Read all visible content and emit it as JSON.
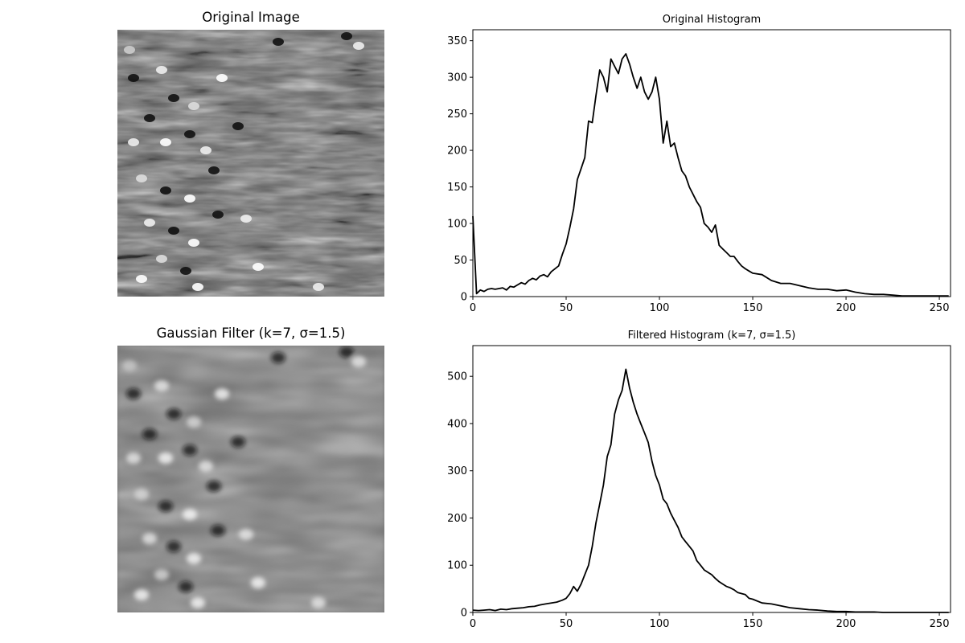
{
  "panels": {
    "original_image": {
      "title": "Original Image"
    },
    "filtered_image": {
      "title": "Gaussian Filter (k=7, σ=1.5)"
    }
  },
  "chart_data": [
    {
      "type": "line",
      "title": "Original Histogram",
      "xlabel": "",
      "ylabel": "",
      "xlim": [
        0,
        256
      ],
      "ylim": [
        0,
        365
      ],
      "xticks": [
        0,
        50,
        100,
        150,
        200,
        250
      ],
      "yticks": [
        0,
        50,
        100,
        150,
        200,
        250,
        300,
        350
      ],
      "grid": false,
      "line_color": "#000000",
      "series": [
        {
          "x": [
            0,
            2,
            4,
            6,
            8,
            10,
            12,
            14,
            16,
            18,
            20,
            22,
            24,
            26,
            28,
            30,
            32,
            34,
            36,
            38,
            40,
            42,
            44,
            46,
            48,
            50,
            52,
            54,
            56,
            58,
            60,
            62,
            64,
            66,
            68,
            70,
            72,
            74,
            76,
            78,
            80,
            82,
            84,
            86,
            88,
            90,
            92,
            94,
            96,
            98,
            100,
            102,
            104,
            106,
            108,
            110,
            112,
            114,
            116,
            118,
            120,
            122,
            124,
            126,
            128,
            130,
            132,
            134,
            136,
            138,
            140,
            142,
            144,
            146,
            148,
            150,
            155,
            160,
            165,
            170,
            175,
            180,
            185,
            190,
            195,
            200,
            205,
            210,
            215,
            220,
            225,
            230,
            235,
            240,
            245,
            250,
            255
          ],
          "values": [
            110,
            4,
            9,
            7,
            10,
            11,
            10,
            11,
            12,
            9,
            14,
            13,
            16,
            19,
            17,
            22,
            25,
            23,
            28,
            30,
            27,
            34,
            38,
            42,
            58,
            72,
            95,
            120,
            160,
            175,
            190,
            240,
            238,
            275,
            310,
            300,
            280,
            325,
            315,
            305,
            325,
            332,
            318,
            300,
            285,
            300,
            280,
            270,
            280,
            300,
            270,
            210,
            240,
            205,
            210,
            190,
            172,
            165,
            150,
            140,
            130,
            122,
            100,
            95,
            88,
            98,
            70,
            65,
            60,
            55,
            55,
            48,
            42,
            38,
            35,
            32,
            30,
            22,
            18,
            18,
            15,
            12,
            10,
            10,
            8,
            9,
            6,
            4,
            3,
            3,
            2,
            1,
            1,
            1,
            1,
            1,
            1
          ]
        }
      ]
    },
    {
      "type": "line",
      "title": "Filtered Histogram (k=7, σ=1.5)",
      "xlabel": "",
      "ylabel": "",
      "xlim": [
        0,
        256
      ],
      "ylim": [
        0,
        565
      ],
      "xticks": [
        0,
        50,
        100,
        150,
        200,
        250
      ],
      "yticks": [
        0,
        100,
        200,
        300,
        400,
        500
      ],
      "grid": false,
      "line_color": "#000000",
      "series": [
        {
          "x": [
            0,
            3,
            6,
            9,
            12,
            15,
            18,
            21,
            24,
            27,
            30,
            33,
            36,
            39,
            42,
            45,
            48,
            50,
            52,
            54,
            56,
            58,
            60,
            62,
            64,
            66,
            68,
            70,
            72,
            74,
            76,
            78,
            80,
            82,
            84,
            86,
            88,
            90,
            92,
            94,
            96,
            98,
            100,
            102,
            104,
            106,
            108,
            110,
            112,
            114,
            116,
            118,
            120,
            122,
            124,
            126,
            128,
            130,
            132,
            134,
            136,
            138,
            140,
            142,
            144,
            146,
            148,
            150,
            155,
            160,
            165,
            170,
            175,
            180,
            185,
            190,
            195,
            200,
            205,
            210,
            215,
            220,
            225,
            230,
            235,
            240,
            245,
            250,
            255
          ],
          "values": [
            5,
            4,
            5,
            6,
            4,
            7,
            6,
            8,
            9,
            10,
            12,
            13,
            16,
            18,
            20,
            22,
            26,
            30,
            40,
            55,
            45,
            60,
            80,
            100,
            140,
            190,
            230,
            270,
            330,
            355,
            420,
            450,
            470,
            515,
            475,
            445,
            420,
            400,
            380,
            360,
            320,
            290,
            270,
            240,
            230,
            210,
            195,
            180,
            160,
            150,
            140,
            130,
            110,
            100,
            90,
            85,
            80,
            72,
            65,
            60,
            55,
            52,
            48,
            42,
            40,
            38,
            30,
            28,
            20,
            18,
            14,
            10,
            8,
            6,
            5,
            3,
            2,
            2,
            1,
            1,
            1,
            0,
            0,
            0,
            0,
            0,
            0,
            0,
            0
          ]
        }
      ]
    }
  ]
}
